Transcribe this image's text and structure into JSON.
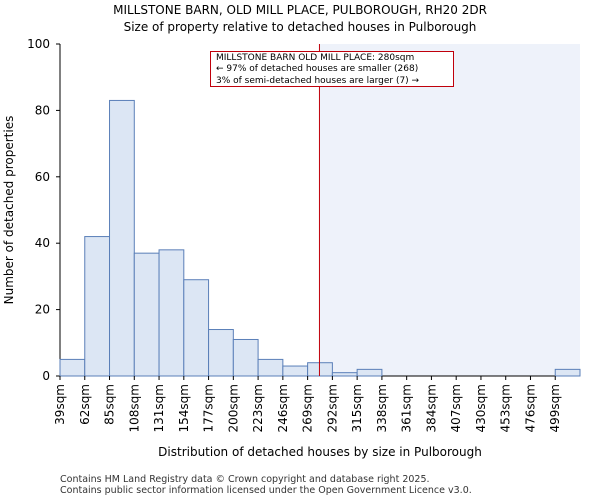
{
  "header": {
    "title": "MILLSTONE BARN, OLD MILL PLACE, PULBOROUGH, RH20 2DR",
    "subtitle": "Size of property relative to detached houses in Pulborough"
  },
  "annotation": {
    "line1": "MILLSTONE BARN OLD MILL PLACE: 280sqm",
    "line2": "← 97% of detached houses are smaller (268)",
    "line3": "3% of semi-detached houses are larger (7) →"
  },
  "footer": {
    "line1": "Contains HM Land Registry data © Crown copyright and database right 2025.",
    "line2": "Contains public sector information licensed under the Open Government Licence v3.0."
  },
  "colors": {
    "bar_fill": "#dce6f4",
    "bar_stroke": "#5a7fb8",
    "marker": "#c0000b",
    "shade": "#eef2fa"
  },
  "chart_data": {
    "type": "bar",
    "title": "MILLSTONE BARN, OLD MILL PLACE, PULBOROUGH, RH20 2DR",
    "subtitle": "Size of property relative to detached houses in Pulborough",
    "xlabel": "Distribution of detached houses by size in Pulborough",
    "ylabel": "Number of detached properties",
    "ylim": [
      0,
      100
    ],
    "yticks": [
      0,
      20,
      40,
      60,
      80,
      100
    ],
    "categories": [
      "39sqm",
      "62sqm",
      "85sqm",
      "108sqm",
      "131sqm",
      "154sqm",
      "177sqm",
      "200sqm",
      "223sqm",
      "246sqm",
      "269sqm",
      "292sqm",
      "315sqm",
      "338sqm",
      "361sqm",
      "384sqm",
      "407sqm",
      "430sqm",
      "453sqm",
      "476sqm",
      "499sqm"
    ],
    "values": [
      5,
      42,
      83,
      37,
      38,
      29,
      14,
      11,
      5,
      3,
      4,
      1,
      2,
      0,
      0,
      0,
      0,
      0,
      0,
      0,
      2
    ],
    "marker_value": 280,
    "x_start": 39,
    "bin_width": 23
  }
}
